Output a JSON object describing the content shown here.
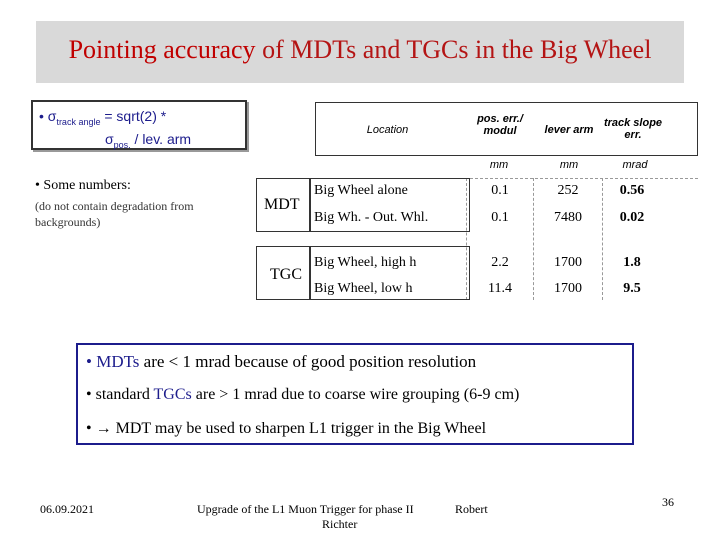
{
  "title": {
    "highlight": "Pointing accuracy",
    "rest": " of MDTs and TGCs in the Big Wheel"
  },
  "formula": {
    "line1_prefix": "σ",
    "line1_sub": "track angle",
    "line1_rest": " = sqrt(2) *",
    "line2_prefix": "σ",
    "line2_sub": "pos.",
    "line2_rest": "  / lev. arm"
  },
  "numbers": {
    "heading": "Some numbers:",
    "note": "(do not contain degradation from backgrounds)"
  },
  "table": {
    "headers": {
      "location": "Location",
      "pos_err": "pos. err./ modul",
      "lever_arm": "lever arm",
      "track_slope": "track slope err."
    },
    "units": {
      "pos_err": "mm",
      "lever_arm": "mm",
      "track_slope": "mrad"
    },
    "groups": [
      {
        "label": "MDT",
        "rows": [
          {
            "location": "Big Wheel alone",
            "pos_err": "0.1",
            "lever_arm": "252",
            "slope_err": "0.56"
          },
          {
            "location": "Big Wh. - Out. Whl.",
            "pos_err": "0.1",
            "lever_arm": "7480",
            "slope_err": "0.02"
          }
        ]
      },
      {
        "label": "TGC",
        "rows": [
          {
            "location": "Big Wheel, high h",
            "pos_err": "2.2",
            "lever_arm": "1700",
            "slope_err": "1.8"
          },
          {
            "location": "Big Wheel, low h",
            "pos_err": "11.4",
            "lever_arm": "1700",
            "slope_err": "9.5"
          }
        ]
      }
    ]
  },
  "summary": {
    "b1_hl": "MDTs",
    "b1_rest": " are < 1 mrad because of good position  resolution",
    "b2_pre": "standard ",
    "b2_hl": "TGCs",
    "b2_rest": " are  > 1 mrad due to coarse wire grouping (6-9 cm)",
    "b3_arrow": "→",
    "b3_text": " MDT may be used to sharpen L1 trigger in the Big Wheel"
  },
  "footer": {
    "date": "06.09.2021",
    "center": "Upgrade of the L1 Muon Trigger for phase II",
    "author": "Robert",
    "author2": "Richter",
    "page": "36"
  }
}
